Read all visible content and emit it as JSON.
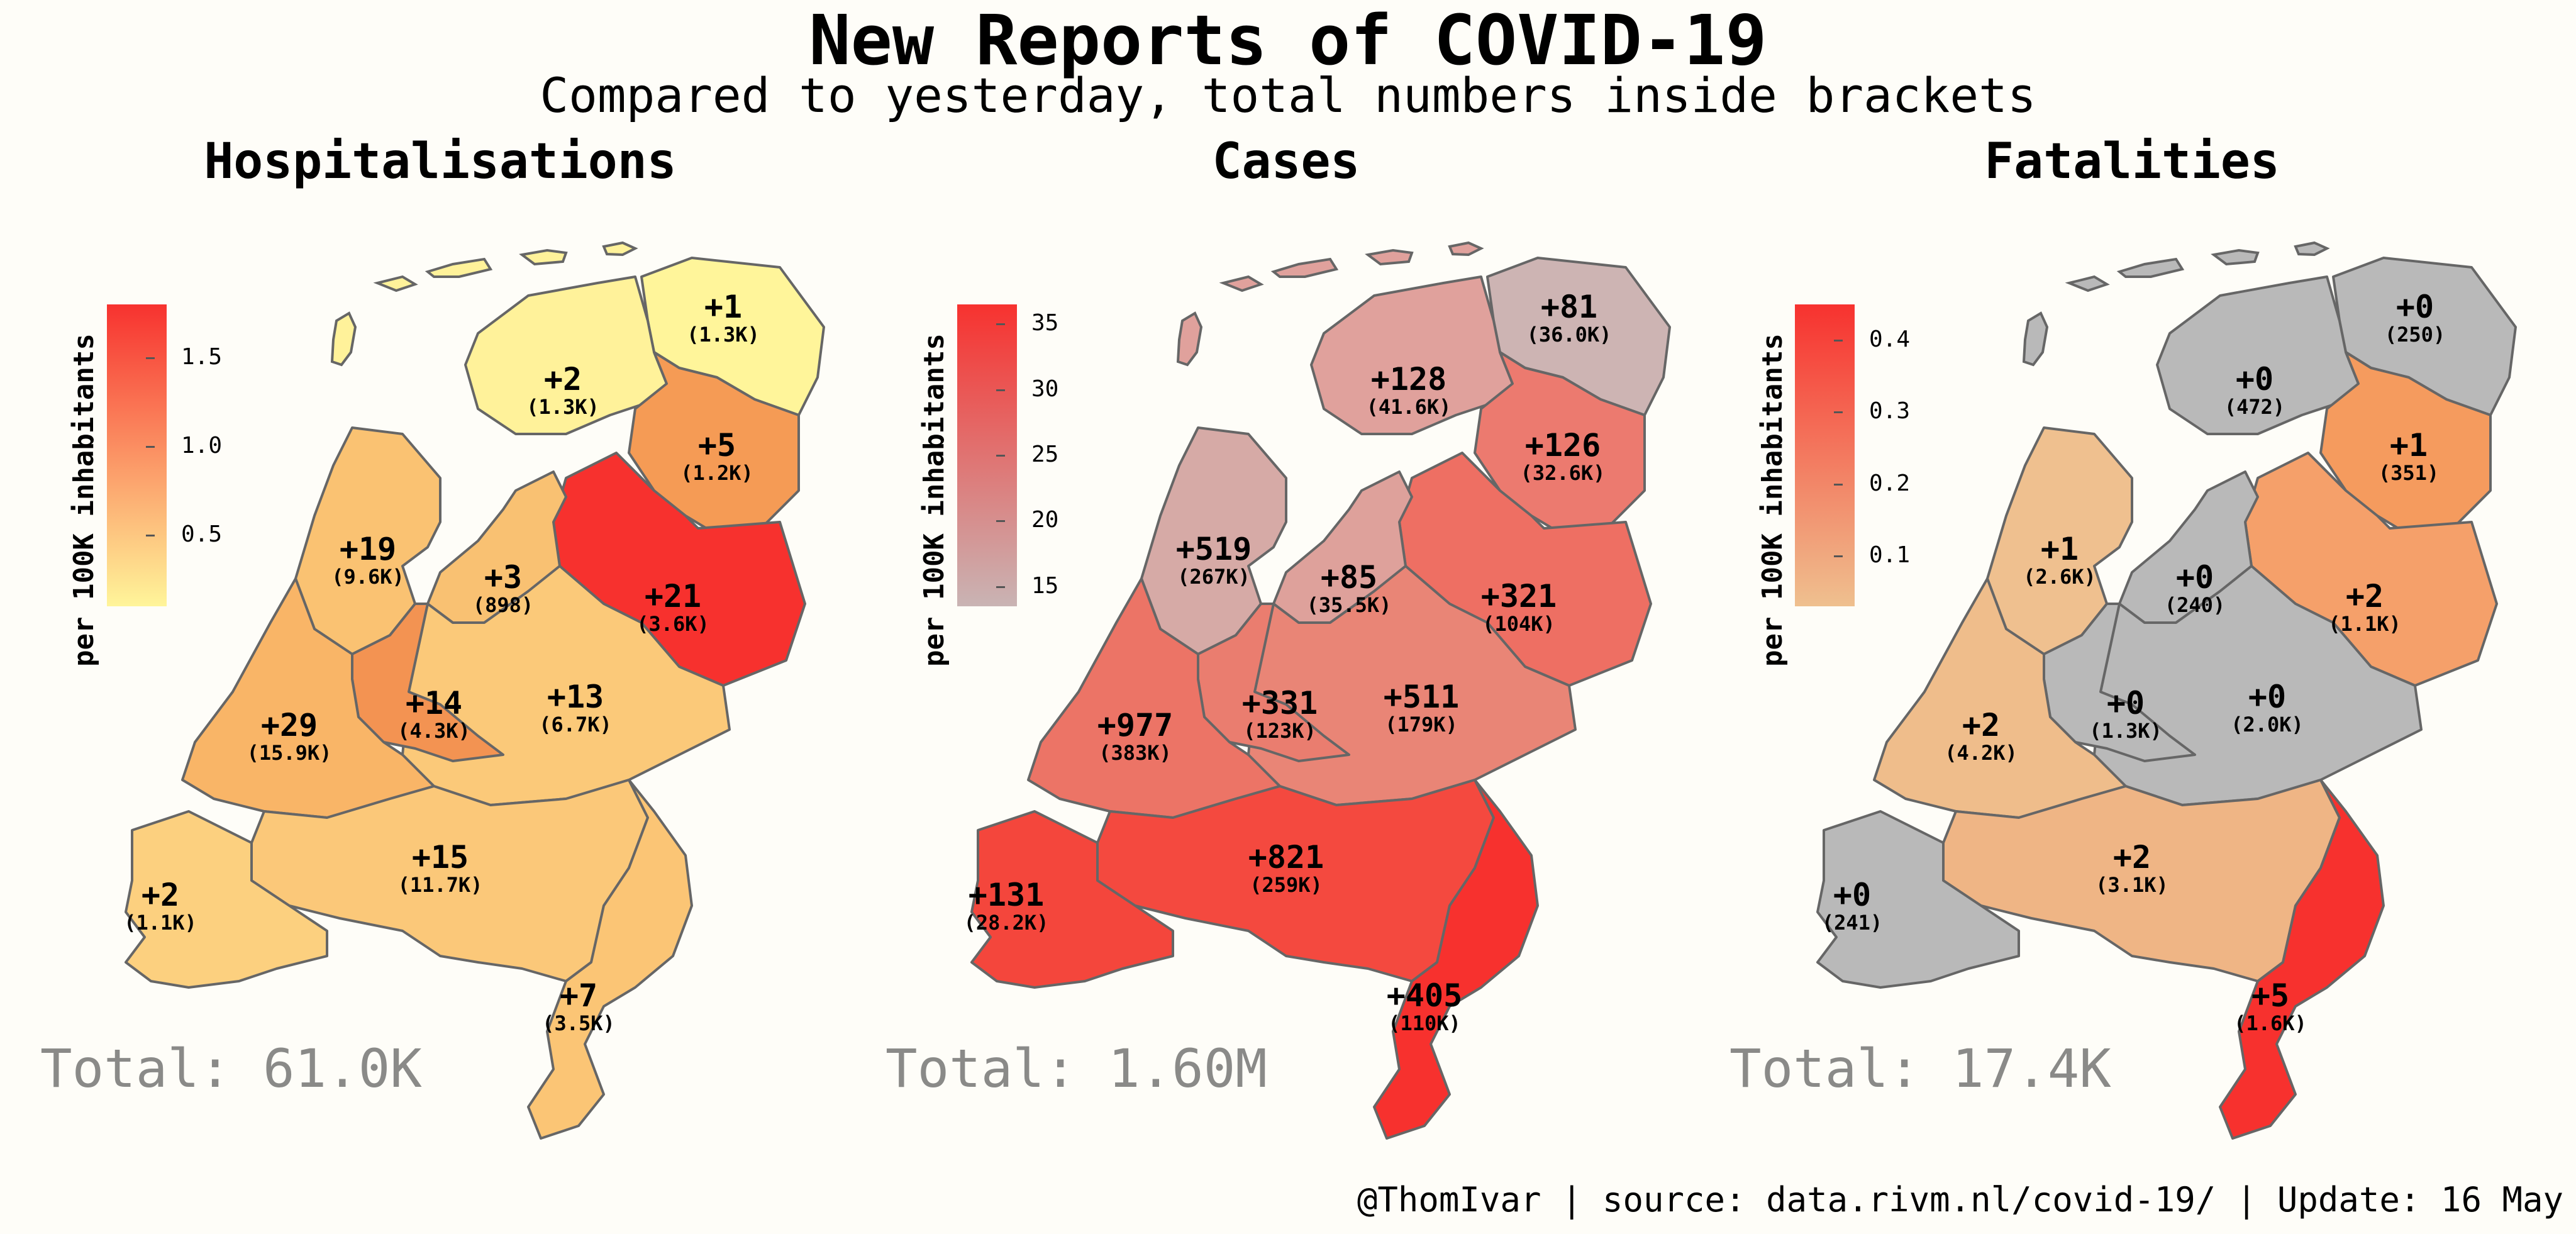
{
  "title": "New Reports of COVID-19",
  "subtitle": "Compared to yesterday, total numbers inside brackets",
  "legend_axis_label": "per 100K inhabitants",
  "footer": "@ThomIvar | source: data.rivm.nl/covid-19/ | Update: 16 May",
  "colors": {
    "background": "#fefdf8",
    "border": "#666666",
    "no_change": "#b9b9b9"
  },
  "panels": [
    {
      "title": "Hospitalisations",
      "total": "Total: 61.0K",
      "legend": {
        "low_color": "#fff59a",
        "high_color": "#f7322f",
        "ticks": [
          "0.5",
          "1.0",
          "1.5"
        ],
        "tick_values": [
          0.5,
          1.0,
          1.5
        ],
        "min": 0.1,
        "max": 1.8
      },
      "regions": [
        {
          "name": "Groningen",
          "change": "+1",
          "total": "(1.3K)",
          "color": "#fff59a"
        },
        {
          "name": "Friesland",
          "change": "+2",
          "total": "(1.3K)",
          "color": "#fff29a"
        },
        {
          "name": "Drenthe",
          "change": "+5",
          "total": "(1.2K)",
          "color": "#f59b55"
        },
        {
          "name": "Overijssel",
          "change": "+21",
          "total": "(3.6K)",
          "color": "#f7312e"
        },
        {
          "name": "Flevoland",
          "change": "+3",
          "total": "(898)",
          "color": "#f9c172"
        },
        {
          "name": "Noord-Holland",
          "change": "+19",
          "total": "(9.6K)",
          "color": "#fac272"
        },
        {
          "name": "Gelderland",
          "change": "+13",
          "total": "(6.7K)",
          "color": "#fbc979"
        },
        {
          "name": "Utrecht",
          "change": "+14",
          "total": "(4.3K)",
          "color": "#f39352"
        },
        {
          "name": "Zuid-Holland",
          "change": "+29",
          "total": "(15.9K)",
          "color": "#f9b567"
        },
        {
          "name": "Noord-Brabant",
          "change": "+15",
          "total": "(11.7K)",
          "color": "#fbc879"
        },
        {
          "name": "Zeeland",
          "change": "+2",
          "total": "(1.1K)",
          "color": "#fcd07f"
        },
        {
          "name": "Limburg",
          "change": "+7",
          "total": "(3.5K)",
          "color": "#fbc575"
        }
      ]
    },
    {
      "title": "Cases",
      "total": "Total: 1.60M",
      "legend": {
        "low_color": "#c9b4b4",
        "high_color": "#f7322f",
        "ticks": [
          "15",
          "20",
          "25",
          "30",
          "35"
        ],
        "tick_values": [
          15,
          20,
          25,
          30,
          35
        ],
        "min": 13.5,
        "max": 36.5
      },
      "regions": [
        {
          "name": "Groningen",
          "change": "+81",
          "total": "(36.0K)",
          "color": "#cdb4b3"
        },
        {
          "name": "Friesland",
          "change": "+128",
          "total": "(41.6K)",
          "color": "#e0a19c"
        },
        {
          "name": "Drenthe",
          "change": "+126",
          "total": "(32.6K)",
          "color": "#ec7a6f"
        },
        {
          "name": "Overijssel",
          "change": "+321",
          "total": "(104K)",
          "color": "#ee6f63"
        },
        {
          "name": "Flevoland",
          "change": "+85",
          "total": "(35.5K)",
          "color": "#dea19b"
        },
        {
          "name": "Noord-Holland",
          "change": "+519",
          "total": "(267K)",
          "color": "#d6aaa6"
        },
        {
          "name": "Gelderland",
          "change": "+511",
          "total": "(179K)",
          "color": "#e98576"
        },
        {
          "name": "Utrecht",
          "change": "+331",
          "total": "(123K)",
          "color": "#ea7d6f"
        },
        {
          "name": "Zuid-Holland",
          "change": "+977",
          "total": "(383K)",
          "color": "#ec7466"
        },
        {
          "name": "Noord-Brabant",
          "change": "+821",
          "total": "(259K)",
          "color": "#f4493f"
        },
        {
          "name": "Zeeland",
          "change": "+131",
          "total": "(28.2K)",
          "color": "#f4463c"
        },
        {
          "name": "Limburg",
          "change": "+405",
          "total": "(110K)",
          "color": "#f7312e"
        }
      ]
    },
    {
      "title": "Fatalities",
      "total": "Total: 17.4K",
      "legend": {
        "low_color": "#efc08f",
        "high_color": "#f7322f",
        "ticks": [
          "0.1",
          "0.2",
          "0.3",
          "0.4"
        ],
        "tick_values": [
          0.1,
          0.2,
          0.3,
          0.4
        ],
        "min": 0.03,
        "max": 0.45
      },
      "regions": [
        {
          "name": "Groningen",
          "change": "+0",
          "total": "(250)",
          "color": "#b9b9b9"
        },
        {
          "name": "Friesland",
          "change": "+0",
          "total": "(472)",
          "color": "#b9b9b9"
        },
        {
          "name": "Drenthe",
          "change": "+1",
          "total": "(351)",
          "color": "#f59b5e"
        },
        {
          "name": "Overijssel",
          "change": "+2",
          "total": "(1.1K)",
          "color": "#f5a06a"
        },
        {
          "name": "Flevoland",
          "change": "+0",
          "total": "(240)",
          "color": "#b9b9b9"
        },
        {
          "name": "Noord-Holland",
          "change": "+1",
          "total": "(2.6K)",
          "color": "#efc08f"
        },
        {
          "name": "Gelderland",
          "change": "+0",
          "total": "(2.0K)",
          "color": "#b9b9b9"
        },
        {
          "name": "Utrecht",
          "change": "+0",
          "total": "(1.3K)",
          "color": "#b9b9b9"
        },
        {
          "name": "Zuid-Holland",
          "change": "+2",
          "total": "(4.2K)",
          "color": "#efbd8b"
        },
        {
          "name": "Noord-Brabant",
          "change": "+2",
          "total": "(3.1K)",
          "color": "#efb585"
        },
        {
          "name": "Zeeland",
          "change": "+0",
          "total": "(241)",
          "color": "#b9b9b9"
        },
        {
          "name": "Limburg",
          "change": "+5",
          "total": "(1.6K)",
          "color": "#f7312e"
        }
      ]
    }
  ]
}
